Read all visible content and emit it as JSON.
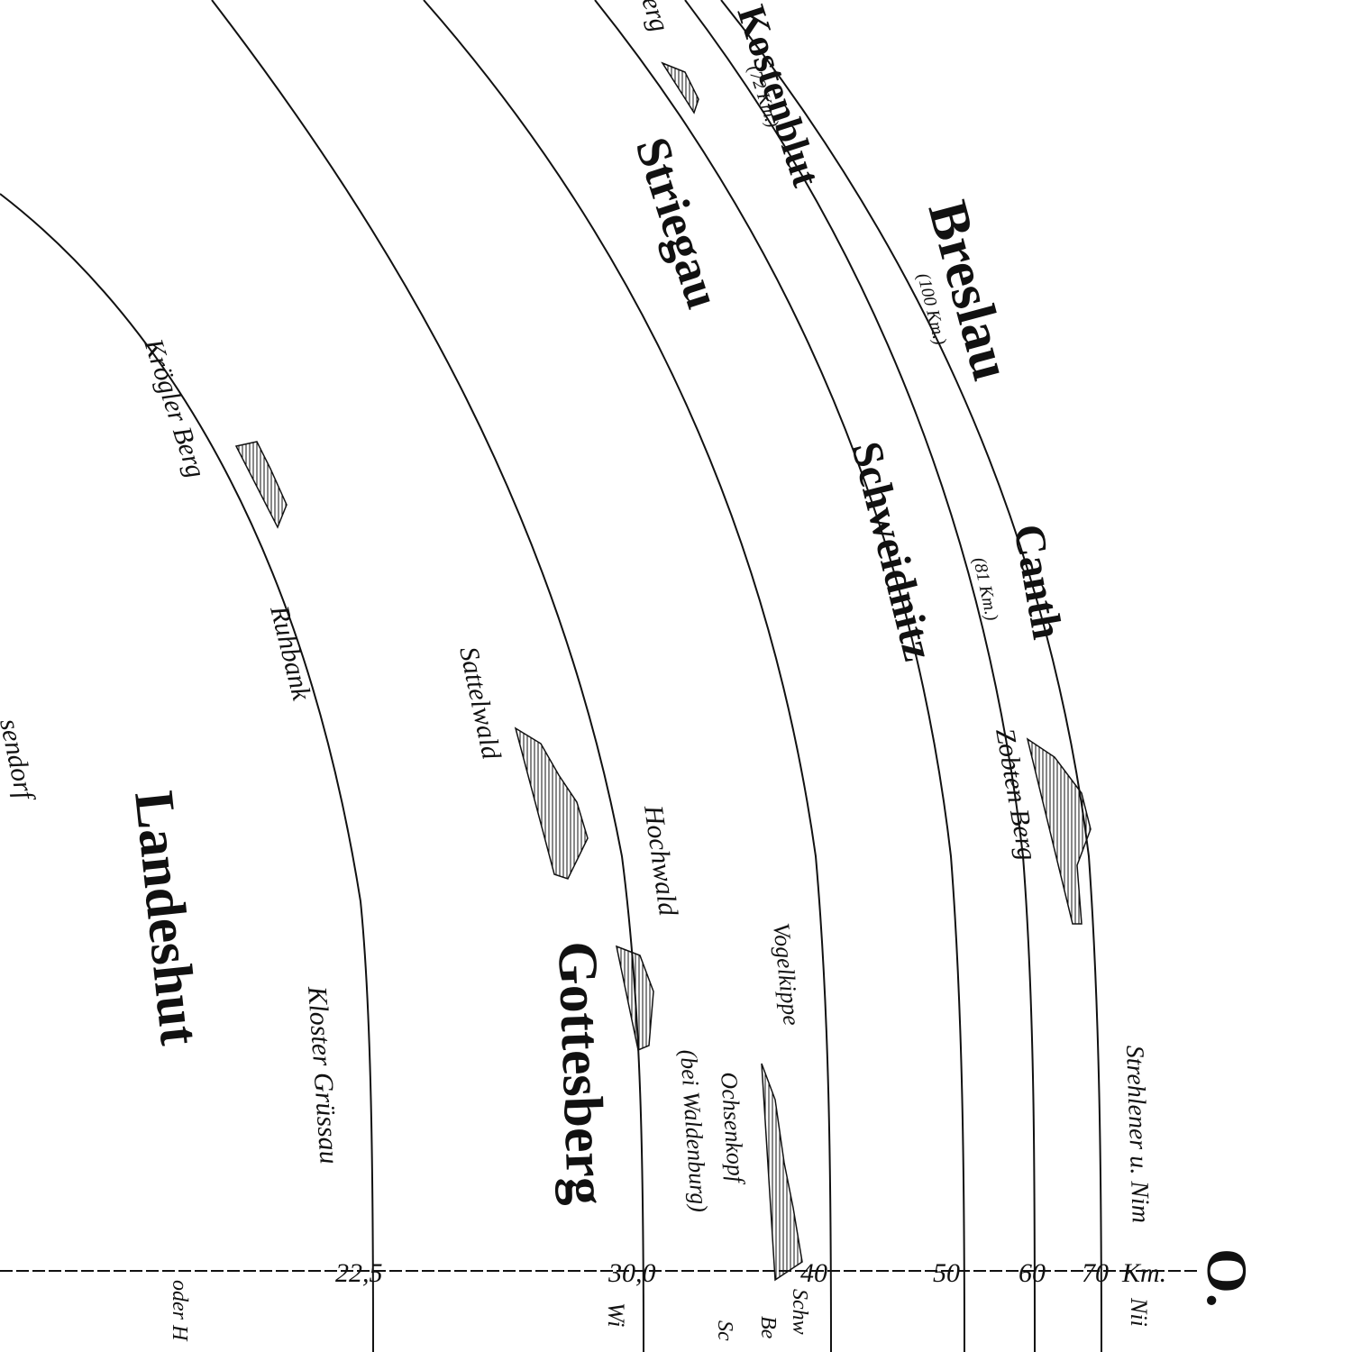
{
  "towns": [
    "Kostenblut",
    "Breslau",
    "Striegau",
    "Schweidnitz",
    "Canth",
    "Landeshut",
    "Gottesberg"
  ],
  "distances": [
    "(72 Km.)",
    "(100 Km.)",
    "(81 Km.)",
    "(bei Waldenburg)"
  ],
  "hills": [
    "erg",
    "Krögler Berg",
    "Ruhbank",
    "Sattelwald",
    "Zobten Berg",
    "Hochwald",
    "Vogelkippe",
    "Ochsenkopf",
    "Kloster Grüssau",
    "Strehlener u. Nim",
    "sendorf"
  ],
  "scale": {
    "ticks": [
      "22,5",
      "30,0",
      "40",
      "50",
      "60",
      "70"
    ],
    "unit": "Km.",
    "direction": "O."
  },
  "bottom_fragments": [
    "oder H",
    "Wi",
    "Schw",
    "Be",
    "Sc",
    "Nii"
  ]
}
